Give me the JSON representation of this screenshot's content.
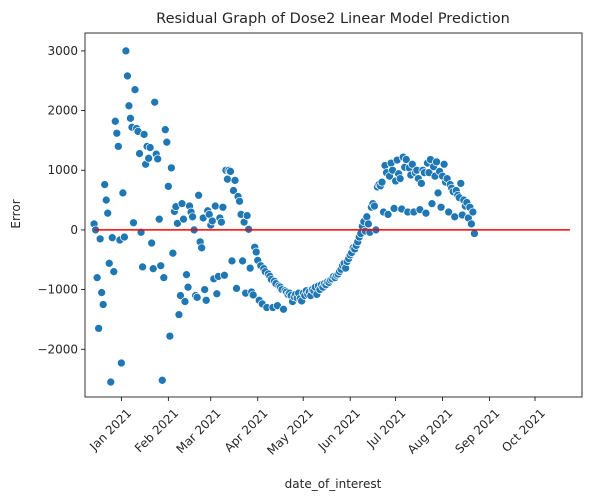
{
  "chart_data": {
    "type": "scatter",
    "title": "Residual Graph of Dose2 Linear Model Prediction",
    "xlabel": "date_of_interest",
    "ylabel": "Error",
    "x_tick_labels": [
      "Jan 2021",
      "Feb 2021",
      "Mar 2021",
      "Apr 2021",
      "May 2021",
      "Jun 2021",
      "Jul 2021",
      "Aug 2021",
      "Sep 2021",
      "Oct 2021"
    ],
    "x_tick_dates": [
      "2021-01-01",
      "2021-02-01",
      "2021-03-01",
      "2021-04-01",
      "2021-05-01",
      "2021-06-01",
      "2021-07-01",
      "2021-08-01",
      "2021-09-01",
      "2021-10-01"
    ],
    "xlim": [
      "2020-12-08",
      "2021-11-01"
    ],
    "ylim": [
      -2800,
      3300
    ],
    "y_ticks": [
      -2000,
      -1000,
      0,
      1000,
      2000,
      3000
    ],
    "y_tick_labels": [
      "−2000",
      "−1000",
      "0",
      "1000",
      "2000",
      "3000"
    ],
    "grid": false,
    "point_color": "#1f77b4",
    "reference_line": {
      "y": 0,
      "color": "#ff0000",
      "x_start": "2020-12-14",
      "x_end": "2021-10-24"
    },
    "points": [
      [
        "2020-12-14",
        100
      ],
      [
        "2020-12-15",
        0
      ],
      [
        "2020-12-16",
        -800
      ],
      [
        "2020-12-17",
        -1650
      ],
      [
        "2020-12-18",
        -150
      ],
      [
        "2020-12-19",
        -1050
      ],
      [
        "2020-12-20",
        -1250
      ],
      [
        "2020-12-21",
        760
      ],
      [
        "2020-12-22",
        500
      ],
      [
        "2020-12-23",
        280
      ],
      [
        "2020-12-24",
        -560
      ],
      [
        "2020-12-25",
        -2550
      ],
      [
        "2020-12-26",
        -130
      ],
      [
        "2020-12-27",
        -700
      ],
      [
        "2020-12-28",
        1820
      ],
      [
        "2020-12-29",
        1620
      ],
      [
        "2020-12-30",
        1400
      ],
      [
        "2020-12-31",
        -170
      ],
      [
        "2021-01-01",
        -2230
      ],
      [
        "2021-01-02",
        620
      ],
      [
        "2021-01-03",
        -120
      ],
      [
        "2021-01-04",
        3000
      ],
      [
        "2021-01-05",
        2580
      ],
      [
        "2021-01-06",
        2080
      ],
      [
        "2021-01-07",
        1870
      ],
      [
        "2021-01-08",
        1720
      ],
      [
        "2021-01-09",
        120
      ],
      [
        "2021-01-10",
        2350
      ],
      [
        "2021-01-11",
        1700
      ],
      [
        "2021-01-12",
        1650
      ],
      [
        "2021-01-13",
        1280
      ],
      [
        "2021-01-14",
        -40
      ],
      [
        "2021-01-15",
        -620
      ],
      [
        "2021-01-16",
        1600
      ],
      [
        "2021-01-17",
        1100
      ],
      [
        "2021-01-18",
        1400
      ],
      [
        "2021-01-19",
        1200
      ],
      [
        "2021-01-20",
        1380
      ],
      [
        "2021-01-21",
        -220
      ],
      [
        "2021-01-22",
        -650
      ],
      [
        "2021-01-23",
        2140
      ],
      [
        "2021-01-24",
        1270
      ],
      [
        "2021-01-25",
        1190
      ],
      [
        "2021-01-26",
        180
      ],
      [
        "2021-01-27",
        -600
      ],
      [
        "2021-01-28",
        -2520
      ],
      [
        "2021-01-29",
        -800
      ],
      [
        "2021-01-30",
        1680
      ],
      [
        "2021-01-31",
        1470
      ],
      [
        "2021-02-01",
        730
      ],
      [
        "2021-02-02",
        -1780
      ],
      [
        "2021-02-03",
        1040
      ],
      [
        "2021-02-04",
        -390
      ],
      [
        "2021-02-05",
        310
      ],
      [
        "2021-02-06",
        390
      ],
      [
        "2021-02-07",
        110
      ],
      [
        "2021-02-08",
        -1420
      ],
      [
        "2021-02-09",
        -1100
      ],
      [
        "2021-02-10",
        440
      ],
      [
        "2021-02-11",
        180
      ],
      [
        "2021-02-12",
        -1200
      ],
      [
        "2021-02-13",
        -750
      ],
      [
        "2021-02-14",
        -960
      ],
      [
        "2021-02-15",
        400
      ],
      [
        "2021-02-16",
        300
      ],
      [
        "2021-02-17",
        220
      ],
      [
        "2021-02-18",
        0
      ],
      [
        "2021-02-19",
        -1100
      ],
      [
        "2021-02-20",
        -1130
      ],
      [
        "2021-02-21",
        580
      ],
      [
        "2021-02-22",
        -200
      ],
      [
        "2021-02-23",
        -300
      ],
      [
        "2021-02-24",
        200
      ],
      [
        "2021-02-25",
        -1000
      ],
      [
        "2021-02-26",
        -1180
      ],
      [
        "2021-02-27",
        320
      ],
      [
        "2021-02-28",
        260
      ],
      [
        "2021-03-01",
        80
      ],
      [
        "2021-03-02",
        150
      ],
      [
        "2021-03-03",
        -820
      ],
      [
        "2021-03-04",
        400
      ],
      [
        "2021-03-05",
        -1070
      ],
      [
        "2021-03-06",
        -780
      ],
      [
        "2021-03-07",
        200
      ],
      [
        "2021-03-08",
        130
      ],
      [
        "2021-03-09",
        380
      ],
      [
        "2021-03-10",
        -760
      ],
      [
        "2021-03-11",
        1000
      ],
      [
        "2021-03-12",
        850
      ],
      [
        "2021-03-13",
        1000
      ],
      [
        "2021-03-14",
        980
      ],
      [
        "2021-03-15",
        -520
      ],
      [
        "2021-03-16",
        660
      ],
      [
        "2021-03-17",
        830
      ],
      [
        "2021-03-18",
        -980
      ],
      [
        "2021-03-19",
        560
      ],
      [
        "2021-03-20",
        480
      ],
      [
        "2021-03-21",
        260
      ],
      [
        "2021-03-22",
        -520
      ],
      [
        "2021-03-23",
        130
      ],
      [
        "2021-03-24",
        -1060
      ],
      [
        "2021-03-25",
        240
      ],
      [
        "2021-03-26",
        10
      ],
      [
        "2021-03-27",
        -640
      ],
      [
        "2021-03-28",
        -1040
      ],
      [
        "2021-03-29",
        -1090
      ],
      [
        "2021-03-30",
        -290
      ],
      [
        "2021-03-31",
        -370
      ],
      [
        "2021-04-01",
        -510
      ],
      [
        "2021-04-02",
        -1180
      ],
      [
        "2021-04-03",
        -600
      ],
      [
        "2021-04-04",
        -1240
      ],
      [
        "2021-04-05",
        -650
      ],
      [
        "2021-04-06",
        -700
      ],
      [
        "2021-04-07",
        -1300
      ],
      [
        "2021-04-08",
        -740
      ],
      [
        "2021-04-09",
        -780
      ],
      [
        "2021-04-10",
        -830
      ],
      [
        "2021-04-11",
        -1300
      ],
      [
        "2021-04-12",
        -860
      ],
      [
        "2021-04-13",
        -900
      ],
      [
        "2021-04-14",
        -1270
      ],
      [
        "2021-04-15",
        -940
      ],
      [
        "2021-04-16",
        -960
      ],
      [
        "2021-04-17",
        -1000
      ],
      [
        "2021-04-18",
        -1330
      ],
      [
        "2021-04-19",
        -1020
      ],
      [
        "2021-04-20",
        -1040
      ],
      [
        "2021-04-21",
        -1080
      ],
      [
        "2021-04-22",
        -1060
      ],
      [
        "2021-04-23",
        -1100
      ],
      [
        "2021-04-24",
        -1200
      ],
      [
        "2021-04-25",
        -1120
      ],
      [
        "2021-04-26",
        -1080
      ],
      [
        "2021-04-27",
        -1140
      ],
      [
        "2021-04-28",
        -1060
      ],
      [
        "2021-04-29",
        -1150
      ],
      [
        "2021-04-30",
        -1190
      ],
      [
        "2021-05-01",
        -1060
      ],
      [
        "2021-05-02",
        -1100
      ],
      [
        "2021-05-03",
        -1020
      ],
      [
        "2021-05-04",
        -1080
      ],
      [
        "2021-05-05",
        -1040
      ],
      [
        "2021-05-06",
        -1100
      ],
      [
        "2021-05-07",
        -1000
      ],
      [
        "2021-05-08",
        -1020
      ],
      [
        "2021-05-09",
        -960
      ],
      [
        "2021-05-10",
        -1080
      ],
      [
        "2021-05-11",
        -940
      ],
      [
        "2021-05-12",
        -1000
      ],
      [
        "2021-05-13",
        -920
      ],
      [
        "2021-05-14",
        -960
      ],
      [
        "2021-05-15",
        -900
      ],
      [
        "2021-05-16",
        -920
      ],
      [
        "2021-05-17",
        -870
      ],
      [
        "2021-05-18",
        -880
      ],
      [
        "2021-05-19",
        -840
      ],
      [
        "2021-05-20",
        -820
      ],
      [
        "2021-05-21",
        -780
      ],
      [
        "2021-05-22",
        -800
      ],
      [
        "2021-05-23",
        -760
      ],
      [
        "2021-05-24",
        -740
      ],
      [
        "2021-05-25",
        -700
      ],
      [
        "2021-05-26",
        -660
      ],
      [
        "2021-05-27",
        -600
      ],
      [
        "2021-05-28",
        -560
      ],
      [
        "2021-05-29",
        -640
      ],
      [
        "2021-05-30",
        -530
      ],
      [
        "2021-05-31",
        -480
      ],
      [
        "2021-06-01",
        -420
      ],
      [
        "2021-06-02",
        -380
      ],
      [
        "2021-06-03",
        -300
      ],
      [
        "2021-06-04",
        -320
      ],
      [
        "2021-06-05",
        -260
      ],
      [
        "2021-06-06",
        -200
      ],
      [
        "2021-06-07",
        -120
      ],
      [
        "2021-06-08",
        -60
      ],
      [
        "2021-06-09",
        60
      ],
      [
        "2021-06-10",
        140
      ],
      [
        "2021-06-11",
        -20
      ],
      [
        "2021-06-12",
        220
      ],
      [
        "2021-06-13",
        100
      ],
      [
        "2021-06-14",
        -40
      ],
      [
        "2021-06-15",
        380
      ],
      [
        "2021-06-16",
        440
      ],
      [
        "2021-06-17",
        400
      ],
      [
        "2021-06-18",
        0
      ],
      [
        "2021-06-19",
        720
      ],
      [
        "2021-06-20",
        760
      ],
      [
        "2021-06-21",
        740
      ],
      [
        "2021-06-22",
        800
      ],
      [
        "2021-06-23",
        300
      ],
      [
        "2021-06-24",
        1080
      ],
      [
        "2021-06-25",
        960
      ],
      [
        "2021-06-26",
        260
      ],
      [
        "2021-06-27",
        900
      ],
      [
        "2021-06-28",
        1120
      ],
      [
        "2021-06-29",
        1000
      ],
      [
        "2021-06-30",
        360
      ],
      [
        "2021-07-01",
        820
      ],
      [
        "2021-07-02",
        1170
      ],
      [
        "2021-07-03",
        940
      ],
      [
        "2021-07-04",
        860
      ],
      [
        "2021-07-05",
        350
      ],
      [
        "2021-07-06",
        1220
      ],
      [
        "2021-07-07",
        1050
      ],
      [
        "2021-07-08",
        1180
      ],
      [
        "2021-07-09",
        300
      ],
      [
        "2021-07-10",
        1040
      ],
      [
        "2021-07-11",
        920
      ],
      [
        "2021-07-12",
        1100
      ],
      [
        "2021-07-13",
        300
      ],
      [
        "2021-07-14",
        960
      ],
      [
        "2021-07-15",
        1000
      ],
      [
        "2021-07-16",
        860
      ],
      [
        "2021-07-17",
        340
      ],
      [
        "2021-07-18",
        780
      ],
      [
        "2021-07-19",
        1000
      ],
      [
        "2021-07-20",
        960
      ],
      [
        "2021-07-21",
        280
      ],
      [
        "2021-07-22",
        1120
      ],
      [
        "2021-07-23",
        960
      ],
      [
        "2021-07-24",
        1180
      ],
      [
        "2021-07-25",
        440
      ],
      [
        "2021-07-26",
        1060
      ],
      [
        "2021-07-27",
        900
      ],
      [
        "2021-07-28",
        1140
      ],
      [
        "2021-07-29",
        620
      ],
      [
        "2021-07-30",
        980
      ],
      [
        "2021-07-31",
        380
      ],
      [
        "2021-08-01",
        900
      ],
      [
        "2021-08-02",
        1100
      ],
      [
        "2021-08-03",
        800
      ],
      [
        "2021-08-04",
        860
      ],
      [
        "2021-08-05",
        300
      ],
      [
        "2021-08-06",
        760
      ],
      [
        "2021-08-07",
        700
      ],
      [
        "2021-08-08",
        640
      ],
      [
        "2021-08-09",
        220
      ],
      [
        "2021-08-10",
        660
      ],
      [
        "2021-08-11",
        580
      ],
      [
        "2021-08-12",
        540
      ],
      [
        "2021-08-13",
        780
      ],
      [
        "2021-08-14",
        250
      ],
      [
        "2021-08-15",
        500
      ],
      [
        "2021-08-16",
        400
      ],
      [
        "2021-08-17",
        460
      ],
      [
        "2021-08-18",
        200
      ],
      [
        "2021-08-19",
        380
      ],
      [
        "2021-08-20",
        100
      ],
      [
        "2021-08-21",
        300
      ],
      [
        "2021-08-22",
        -60
      ]
    ]
  }
}
